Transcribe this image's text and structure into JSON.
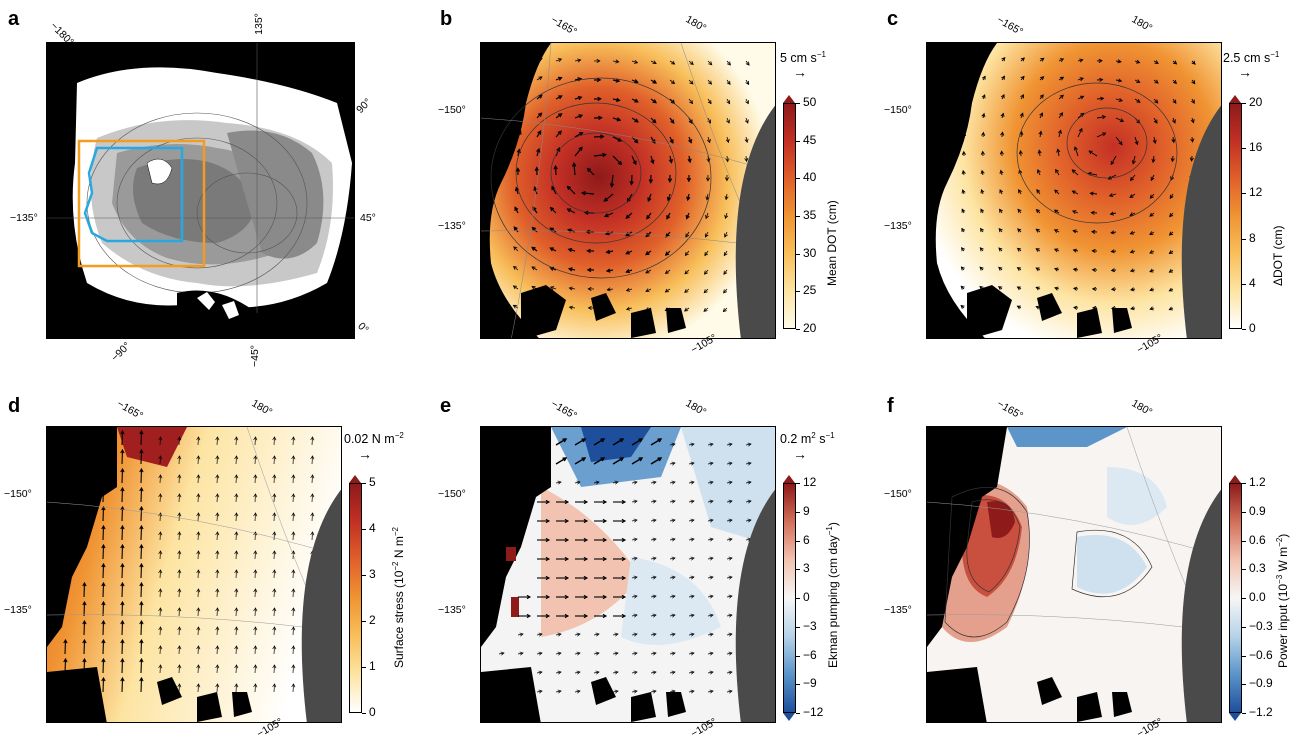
{
  "panels": {
    "a": {
      "label": "a",
      "degs": [
        "−180°",
        "135°",
        "90°",
        "−135°",
        "45°",
        "0°",
        "−90°",
        "−45°"
      ]
    },
    "b": {
      "label": "b",
      "degs": [
        "−165°",
        "180°",
        "−150°",
        "−135°",
        "−105°"
      ],
      "ref": "5 cm s",
      "ref_exp": "−1",
      "cbar_title": "Mean DOT (cm)",
      "ticks": [
        "50",
        "45",
        "40",
        "35",
        "30",
        "25",
        "20"
      ],
      "colors": [
        "#fffbe8",
        "#fde4a2",
        "#f8bf5a",
        "#f09433",
        "#e0602a",
        "#c33025",
        "#8e1a1a"
      ]
    },
    "c": {
      "label": "c",
      "degs": [
        "−165°",
        "180°",
        "−150°",
        "−135°",
        "−105°"
      ],
      "ref": "2.5 cm s",
      "ref_exp": "−1",
      "cbar_title": "ΔDOT (cm)",
      "ticks": [
        "20",
        "16",
        "12",
        "8",
        "4",
        "0"
      ],
      "colors": [
        "#ffffff",
        "#fde4a2",
        "#f8bf5a",
        "#f09433",
        "#e0602a",
        "#c33025",
        "#8e1a1a"
      ]
    },
    "d": {
      "label": "d",
      "degs": [
        "−165°",
        "180°",
        "−150°",
        "−135°",
        "−105°"
      ],
      "ref": "0.02 N m",
      "ref_exp": "−2",
      "cbar_title": "Surface stress (10",
      "cbar_title_exp": "−2",
      "cbar_title_tail": " N m",
      "cbar_title_exp2": "−2",
      "ticks": [
        "5",
        "4",
        "3",
        "2",
        "1",
        "0"
      ],
      "colors": [
        "#ffffff",
        "#fde4a2",
        "#f8bf5a",
        "#f09433",
        "#e0602a",
        "#c33025",
        "#8e1a1a"
      ]
    },
    "e": {
      "label": "e",
      "degs": [
        "−165°",
        "180°",
        "−150°",
        "−135°",
        "−105°"
      ],
      "ref": "0.2 m",
      "ref_exp": "2",
      "ref_tail": " s",
      "ref_exp2": "−1",
      "cbar_title": "Ekman pumping (cm day",
      "cbar_title_exp": "−1",
      "cbar_title_tail": ")",
      "ticks": [
        "12",
        "9",
        "6",
        "3",
        "0",
        "−3",
        "−6",
        "−9",
        "−12"
      ],
      "colors": [
        "#1e4f9c",
        "#5b95c9",
        "#b6d3e8",
        "#f6f6f6",
        "#f2c3b0",
        "#d2705a",
        "#8e1a1a"
      ]
    },
    "f": {
      "label": "f",
      "degs": [
        "−165°",
        "180°",
        "−150°",
        "−135°",
        "−105°"
      ],
      "cbar_title": "Power input (10",
      "cbar_title_exp": "−3",
      "cbar_title_tail": " W m",
      "cbar_title_exp2": "−2",
      "cbar_title_end": ")",
      "ticks": [
        "1.2",
        "0.9",
        "0.6",
        "0.3",
        "0.0",
        "−0.3",
        "−0.6",
        "−0.9",
        "−1.2"
      ],
      "colors": [
        "#1e4f9c",
        "#5b95c9",
        "#b6d3e8",
        "#f6f6f6",
        "#f2c3b0",
        "#d2705a",
        "#8e1a1a"
      ]
    }
  }
}
